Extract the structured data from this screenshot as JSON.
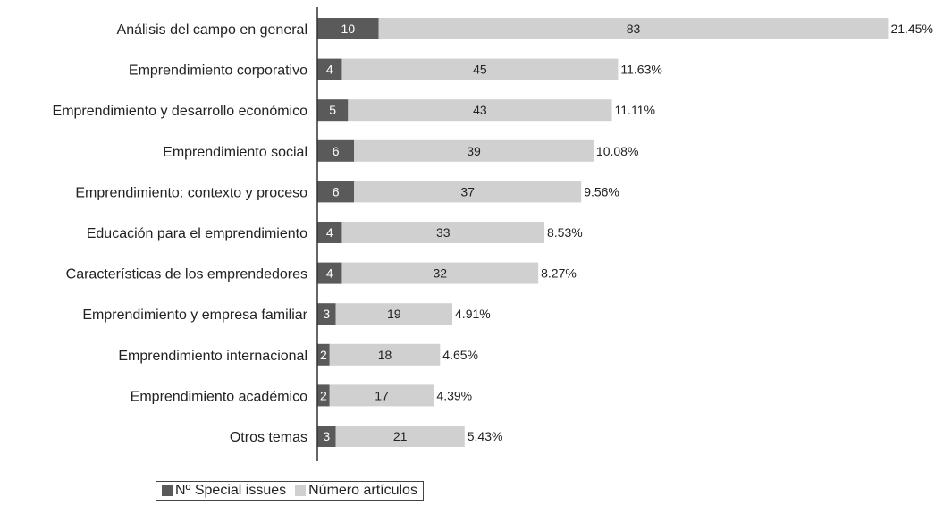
{
  "chart_data": {
    "type": "bar",
    "orientation": "horizontal",
    "stacked": true,
    "categories": [
      "Análisis del campo en general",
      "Emprendimiento corporativo",
      "Emprendimiento y desarrollo económico",
      "Emprendimiento social",
      "Emprendimiento: contexto y proceso",
      "Educación para el emprendimiento",
      "Características de los emprendedores",
      "Emprendimiento y empresa familiar",
      "Emprendimiento internacional",
      "Emprendimiento académico",
      "Otros temas"
    ],
    "series": [
      {
        "name": "Nº Special issues",
        "values": [
          10,
          4,
          5,
          6,
          6,
          4,
          4,
          3,
          2,
          2,
          3
        ],
        "color": "#5a5a5a",
        "label_color": "#ffffff"
      },
      {
        "name": "Número artículos",
        "values": [
          83,
          45,
          43,
          39,
          37,
          33,
          32,
          19,
          18,
          17,
          21
        ],
        "color": "#d0d0d0",
        "label_color": "#222222"
      }
    ],
    "percent_labels": [
      "21.45%",
      "11.63%",
      "11.11%",
      "10.08%",
      "9.56%",
      "8.53%",
      "8.27%",
      "4.91%",
      "4.65%",
      "4.39%",
      "5.43%"
    ],
    "legend_position": "bottom-left",
    "grid": false,
    "xlim": [
      0,
      93
    ]
  }
}
